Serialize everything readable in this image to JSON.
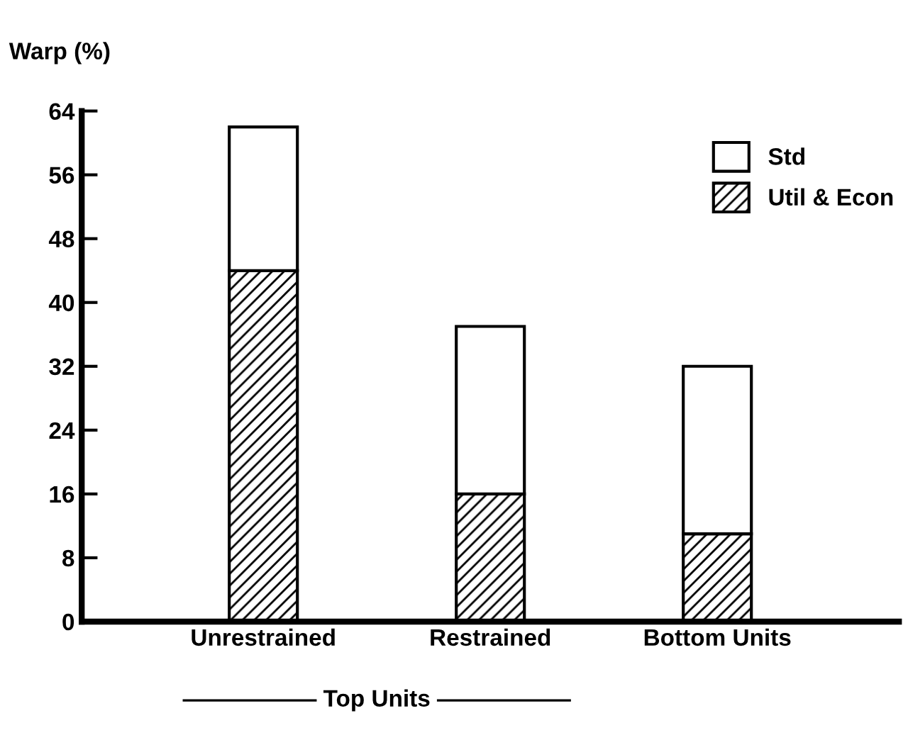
{
  "chart_data": {
    "type": "bar",
    "ylabel": "Warp (%)",
    "categories": [
      "Unrestrained",
      "Restrained",
      "Bottom Units"
    ],
    "stacked": true,
    "legend": "top right",
    "series": [
      {
        "name": "Util & Econ",
        "color": "#000000",
        "values": [
          44,
          16,
          11
        ]
      },
      {
        "name": "Std",
        "color": "#ffffff",
        "values": [
          18,
          21,
          21
        ]
      }
    ],
    "ylim": [
      0,
      64
    ],
    "yticks": [
      0,
      8,
      16,
      24,
      32,
      40,
      48,
      56,
      64
    ],
    "grid": false,
    "annotations": [
      {
        "text": "Top Units"
      }
    ]
  }
}
